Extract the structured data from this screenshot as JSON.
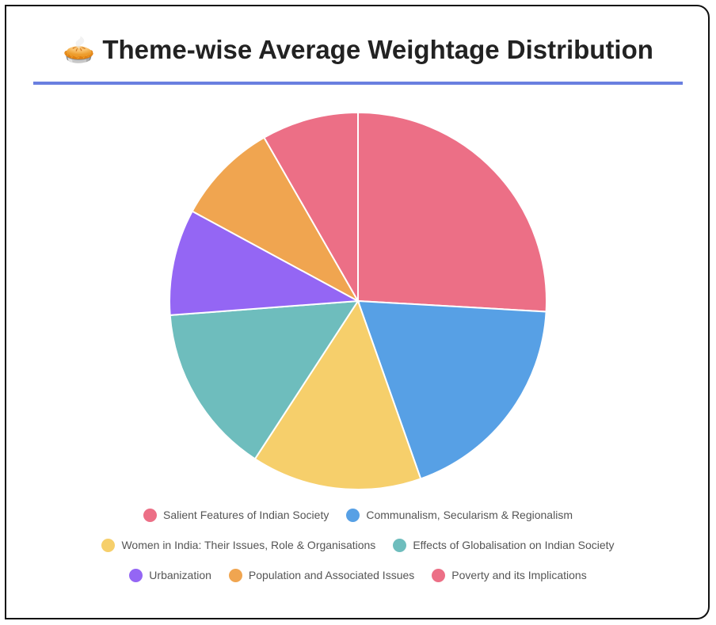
{
  "chart_data": {
    "type": "pie",
    "title": "🥧 Theme-wise Average Weightage Distribution",
    "categories": [
      "Salient Features of Indian Society",
      "Communalism, Secularism & Regionalism",
      "Women in India: Their Issues, Role & Organisations",
      "Effects of Globalisation on Indian Society",
      "Urbanization",
      "Population and Associated Issues",
      "Poverty and its Implications"
    ],
    "values": [
      25.9,
      18.7,
      14.6,
      14.6,
      9.1,
      8.8,
      8.3
    ],
    "colors": [
      "#ec6f86",
      "#57a0e5",
      "#f6cf6b",
      "#6ebdbd",
      "#9466f4",
      "#f0a550",
      "#ec6f86"
    ],
    "legend": "bottom"
  }
}
